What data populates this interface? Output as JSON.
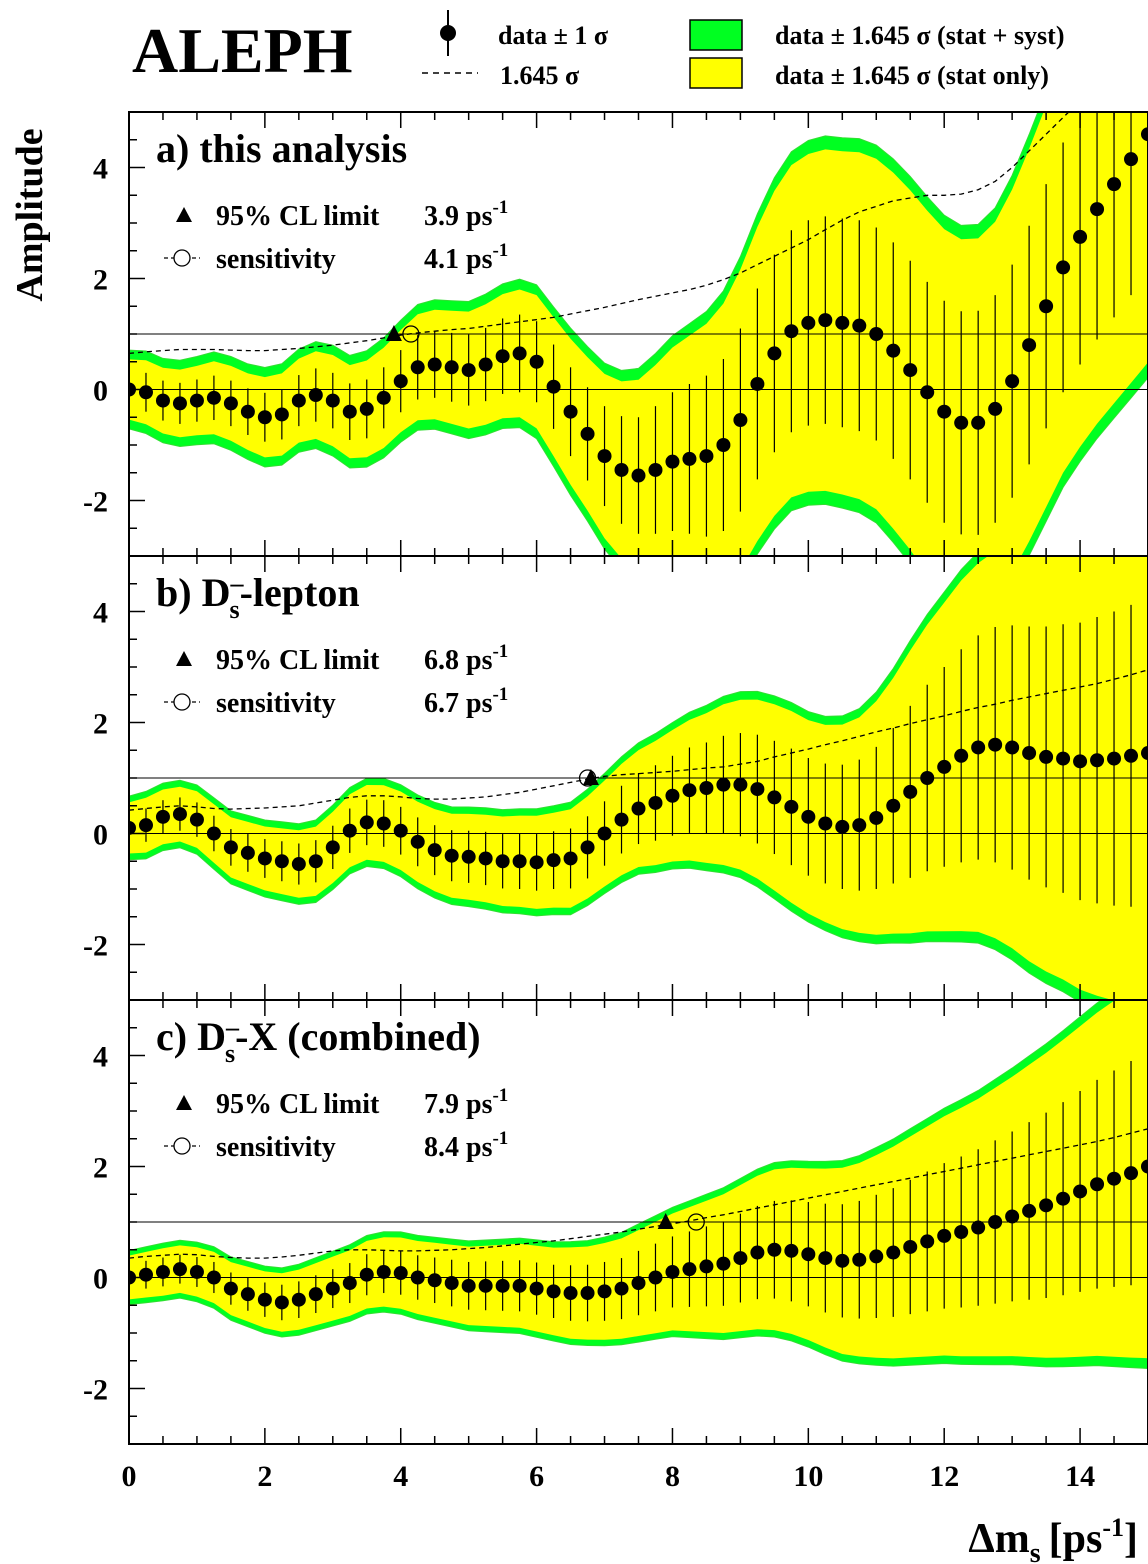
{
  "header": {
    "experiment": "ALEPH",
    "legend": {
      "data_1sigma": "data ± 1 σ",
      "dashed": "1.645 σ",
      "green_band": "data ± 1.645 σ (stat + syst)",
      "yellow_band": "data ± 1.645 σ (stat only)"
    }
  },
  "colors": {
    "green": "#00ff21",
    "yellow": "#ffff00",
    "green_edge": "#33dd33"
  },
  "axis": {
    "ylabel": "Amplitude",
    "xlabel": "Δm",
    "xlabel_sub": "s",
    "xlabel_unit": "[ps",
    "xlabel_sup": "-1",
    "xlabel_close": "]",
    "xlim": [
      0,
      15
    ],
    "ylim": [
      -3,
      5
    ],
    "xticks": [
      "0",
      "2",
      "4",
      "6",
      "8",
      "10",
      "12",
      "14"
    ],
    "yticks": [
      "-2",
      "0",
      "2",
      "4"
    ]
  },
  "chart_data": [
    {
      "type": "line",
      "panel_label": "a) this analysis",
      "limit_label": "95% CL limit",
      "limit_value": "3.9 ps",
      "sens_label": "sensitivity",
      "sens_value": "4.1 ps",
      "unit_sup": "-1",
      "limit_x": 3.9,
      "sens_x": 4.15,
      "x": [
        0,
        0.25,
        0.5,
        0.75,
        1,
        1.25,
        1.5,
        1.75,
        2,
        2.25,
        2.5,
        2.75,
        3,
        3.25,
        3.5,
        3.75,
        4,
        4.25,
        4.5,
        4.75,
        5,
        5.25,
        5.5,
        5.75,
        6,
        6.25,
        6.5,
        6.75,
        7,
        7.25,
        7.5,
        7.75,
        8,
        8.25,
        8.5,
        8.75,
        9,
        9.25,
        9.5,
        9.75,
        10,
        10.25,
        10.5,
        10.75,
        11,
        11.25,
        11.5,
        11.75,
        12,
        12.25,
        12.5,
        12.75,
        13,
        13.25,
        13.5,
        13.75,
        14,
        14.25,
        14.5,
        14.75,
        15
      ],
      "amplitude": [
        0,
        -0.05,
        -0.2,
        -0.25,
        -0.2,
        -0.15,
        -0.25,
        -0.4,
        -0.5,
        -0.45,
        -0.2,
        -0.1,
        -0.2,
        -0.4,
        -0.35,
        -0.15,
        0.15,
        0.4,
        0.45,
        0.4,
        0.35,
        0.45,
        0.6,
        0.65,
        0.5,
        0.05,
        -0.4,
        -0.8,
        -1.2,
        -1.45,
        -1.55,
        -1.45,
        -1.3,
        -1.25,
        -1.2,
        -1.0,
        -0.55,
        0.1,
        0.65,
        1.05,
        1.2,
        1.25,
        1.2,
        1.15,
        1.0,
        0.7,
        0.35,
        -0.05,
        -0.4,
        -0.6,
        -0.6,
        -0.35,
        0.15,
        0.8,
        1.5,
        2.2,
        2.75,
        3.25,
        3.7,
        4.15,
        4.6
      ],
      "sigma_stat": [
        0.33,
        0.35,
        0.36,
        0.37,
        0.38,
        0.4,
        0.41,
        0.42,
        0.44,
        0.45,
        0.46,
        0.48,
        0.5,
        0.51,
        0.53,
        0.55,
        0.56,
        0.58,
        0.6,
        0.62,
        0.64,
        0.66,
        0.68,
        0.7,
        0.73,
        0.76,
        0.8,
        0.84,
        0.9,
        0.97,
        1.05,
        1.15,
        1.25,
        1.35,
        1.45,
        1.55,
        1.65,
        1.72,
        1.78,
        1.82,
        1.85,
        1.87,
        1.88,
        1.9,
        1.92,
        1.95,
        1.97,
        1.99,
        2.0,
        2.01,
        2.02,
        2.05,
        2.1,
        2.15,
        2.2,
        2.25,
        2.3,
        2.35,
        2.4,
        2.45,
        2.5
      ],
      "syst_extra": 0.15,
      "sensitivity_1645": [
        0.65,
        0.68,
        0.7,
        0.72,
        0.72,
        0.72,
        0.71,
        0.7,
        0.7,
        0.72,
        0.74,
        0.77,
        0.8,
        0.84,
        0.88,
        0.93,
        0.98,
        1.02,
        1.05,
        1.08,
        1.1,
        1.14,
        1.18,
        1.22,
        1.26,
        1.3,
        1.36,
        1.42,
        1.48,
        1.55,
        1.62,
        1.68,
        1.74,
        1.8,
        1.88,
        1.98,
        2.1,
        2.25,
        2.4,
        2.55,
        2.7,
        2.88,
        3.05,
        3.2,
        3.3,
        3.4,
        3.45,
        3.5,
        3.5,
        3.52,
        3.6,
        3.75,
        4.0,
        4.3,
        4.6,
        4.9,
        5.2,
        5.5,
        5.8,
        6.1,
        6.4
      ]
    },
    {
      "type": "line",
      "panel_label": "b) D",
      "panel_label_sup": "–",
      "panel_label_sub": "s",
      "panel_label_rest": "-lepton",
      "limit_label": "95% CL limit",
      "limit_value": "6.8 ps",
      "sens_label": "sensitivity",
      "sens_value": "6.7 ps",
      "unit_sup": "-1",
      "limit_x": 6.8,
      "sens_x": 6.75,
      "x": [
        0,
        0.25,
        0.5,
        0.75,
        1,
        1.25,
        1.5,
        1.75,
        2,
        2.25,
        2.5,
        2.75,
        3,
        3.25,
        3.5,
        3.75,
        4,
        4.25,
        4.5,
        4.75,
        5,
        5.25,
        5.5,
        5.75,
        6,
        6.25,
        6.5,
        6.75,
        7,
        7.25,
        7.5,
        7.75,
        8,
        8.25,
        8.5,
        8.75,
        9,
        9.25,
        9.5,
        9.75,
        10,
        10.25,
        10.5,
        10.75,
        11,
        11.25,
        11.5,
        11.75,
        12,
        12.25,
        12.5,
        12.75,
        13,
        13.25,
        13.5,
        13.75,
        14,
        14.25,
        14.5,
        14.75,
        15
      ],
      "amplitude": [
        0.1,
        0.15,
        0.3,
        0.35,
        0.25,
        0.0,
        -0.25,
        -0.35,
        -0.45,
        -0.5,
        -0.55,
        -0.5,
        -0.25,
        0.05,
        0.2,
        0.18,
        0.05,
        -0.15,
        -0.3,
        -0.4,
        -0.42,
        -0.45,
        -0.5,
        -0.5,
        -0.52,
        -0.48,
        -0.45,
        -0.25,
        0.0,
        0.25,
        0.45,
        0.55,
        0.68,
        0.78,
        0.82,
        0.88,
        0.88,
        0.8,
        0.65,
        0.48,
        0.3,
        0.18,
        0.12,
        0.15,
        0.28,
        0.5,
        0.75,
        1.0,
        1.2,
        1.4,
        1.55,
        1.6,
        1.55,
        1.45,
        1.38,
        1.35,
        1.3,
        1.32,
        1.35,
        1.4,
        1.45
      ],
      "sigma_stat": [
        0.28,
        0.3,
        0.3,
        0.3,
        0.31,
        0.32,
        0.33,
        0.34,
        0.35,
        0.36,
        0.37,
        0.38,
        0.39,
        0.4,
        0.41,
        0.42,
        0.43,
        0.44,
        0.45,
        0.46,
        0.47,
        0.48,
        0.49,
        0.5,
        0.51,
        0.52,
        0.54,
        0.56,
        0.58,
        0.61,
        0.64,
        0.68,
        0.72,
        0.77,
        0.82,
        0.88,
        0.93,
        0.98,
        1.02,
        1.05,
        1.06,
        1.08,
        1.12,
        1.18,
        1.28,
        1.4,
        1.55,
        1.68,
        1.8,
        1.92,
        2.02,
        2.12,
        2.2,
        2.28,
        2.35,
        2.42,
        2.5,
        2.58,
        2.65,
        2.72,
        2.8
      ],
      "syst_extra": 0.1,
      "sensitivity_1645": [
        0.42,
        0.45,
        0.48,
        0.5,
        0.48,
        0.45,
        0.44,
        0.45,
        0.46,
        0.48,
        0.5,
        0.55,
        0.6,
        0.65,
        0.68,
        0.68,
        0.66,
        0.63,
        0.62,
        0.62,
        0.64,
        0.66,
        0.7,
        0.74,
        0.8,
        0.86,
        0.92,
        0.98,
        1.03,
        1.06,
        1.08,
        1.1,
        1.12,
        1.15,
        1.18,
        1.2,
        1.25,
        1.3,
        1.38,
        1.45,
        1.52,
        1.6,
        1.67,
        1.75,
        1.83,
        1.9,
        1.98,
        2.05,
        2.12,
        2.2,
        2.27,
        2.33,
        2.4,
        2.46,
        2.52,
        2.58,
        2.64,
        2.7,
        2.78,
        2.86,
        2.95
      ]
    },
    {
      "type": "line",
      "panel_label": "c) D",
      "panel_label_sup": "–",
      "panel_label_sub": "s",
      "panel_label_rest": "-X (combined)",
      "limit_label": "95% CL limit",
      "limit_value": "7.9 ps",
      "sens_label": "sensitivity",
      "sens_value": "8.4 ps",
      "unit_sup": "-1",
      "limit_x": 7.9,
      "sens_x": 8.35,
      "x": [
        0,
        0.25,
        0.5,
        0.75,
        1,
        1.25,
        1.5,
        1.75,
        2,
        2.25,
        2.5,
        2.75,
        3,
        3.25,
        3.5,
        3.75,
        4,
        4.25,
        4.5,
        4.75,
        5,
        5.25,
        5.5,
        5.75,
        6,
        6.25,
        6.5,
        6.75,
        7,
        7.25,
        7.5,
        7.75,
        8,
        8.25,
        8.5,
        8.75,
        9,
        9.25,
        9.5,
        9.75,
        10,
        10.25,
        10.5,
        10.75,
        11,
        11.25,
        11.5,
        11.75,
        12,
        12.25,
        12.5,
        12.75,
        13,
        13.25,
        13.5,
        13.75,
        14,
        14.25,
        14.5,
        14.75,
        15
      ],
      "amplitude": [
        0.0,
        0.05,
        0.1,
        0.15,
        0.1,
        0.0,
        -0.2,
        -0.3,
        -0.4,
        -0.45,
        -0.4,
        -0.3,
        -0.2,
        -0.1,
        0.05,
        0.1,
        0.08,
        0.0,
        -0.05,
        -0.1,
        -0.15,
        -0.15,
        -0.15,
        -0.15,
        -0.2,
        -0.25,
        -0.28,
        -0.28,
        -0.25,
        -0.2,
        -0.1,
        0.0,
        0.1,
        0.15,
        0.2,
        0.25,
        0.35,
        0.45,
        0.5,
        0.48,
        0.42,
        0.35,
        0.3,
        0.32,
        0.38,
        0.45,
        0.55,
        0.65,
        0.75,
        0.82,
        0.9,
        1.0,
        1.1,
        1.2,
        1.3,
        1.42,
        1.55,
        1.68,
        1.78,
        1.88,
        2.0
      ],
      "sigma_stat": [
        0.24,
        0.25,
        0.26,
        0.26,
        0.27,
        0.28,
        0.29,
        0.3,
        0.31,
        0.32,
        0.33,
        0.34,
        0.35,
        0.36,
        0.37,
        0.38,
        0.39,
        0.4,
        0.41,
        0.42,
        0.43,
        0.44,
        0.45,
        0.46,
        0.47,
        0.48,
        0.5,
        0.51,
        0.53,
        0.55,
        0.58,
        0.61,
        0.64,
        0.68,
        0.72,
        0.76,
        0.8,
        0.84,
        0.88,
        0.91,
        0.94,
        0.98,
        1.02,
        1.06,
        1.11,
        1.16,
        1.21,
        1.26,
        1.31,
        1.36,
        1.41,
        1.47,
        1.53,
        1.6,
        1.67,
        1.74,
        1.81,
        1.88,
        1.95,
        2.02,
        2.1
      ],
      "syst_extra": 0.08,
      "sensitivity_1645": [
        0.35,
        0.38,
        0.4,
        0.42,
        0.41,
        0.38,
        0.36,
        0.35,
        0.35,
        0.37,
        0.4,
        0.44,
        0.48,
        0.5,
        0.5,
        0.49,
        0.48,
        0.48,
        0.49,
        0.5,
        0.52,
        0.54,
        0.57,
        0.6,
        0.63,
        0.66,
        0.7,
        0.74,
        0.78,
        0.82,
        0.87,
        0.92,
        0.97,
        1.02,
        1.08,
        1.13,
        1.19,
        1.25,
        1.31,
        1.37,
        1.43,
        1.49,
        1.55,
        1.61,
        1.67,
        1.73,
        1.79,
        1.85,
        1.91,
        1.97,
        2.03,
        2.09,
        2.15,
        2.21,
        2.27,
        2.33,
        2.39,
        2.45,
        2.52,
        2.6,
        2.68
      ]
    }
  ]
}
